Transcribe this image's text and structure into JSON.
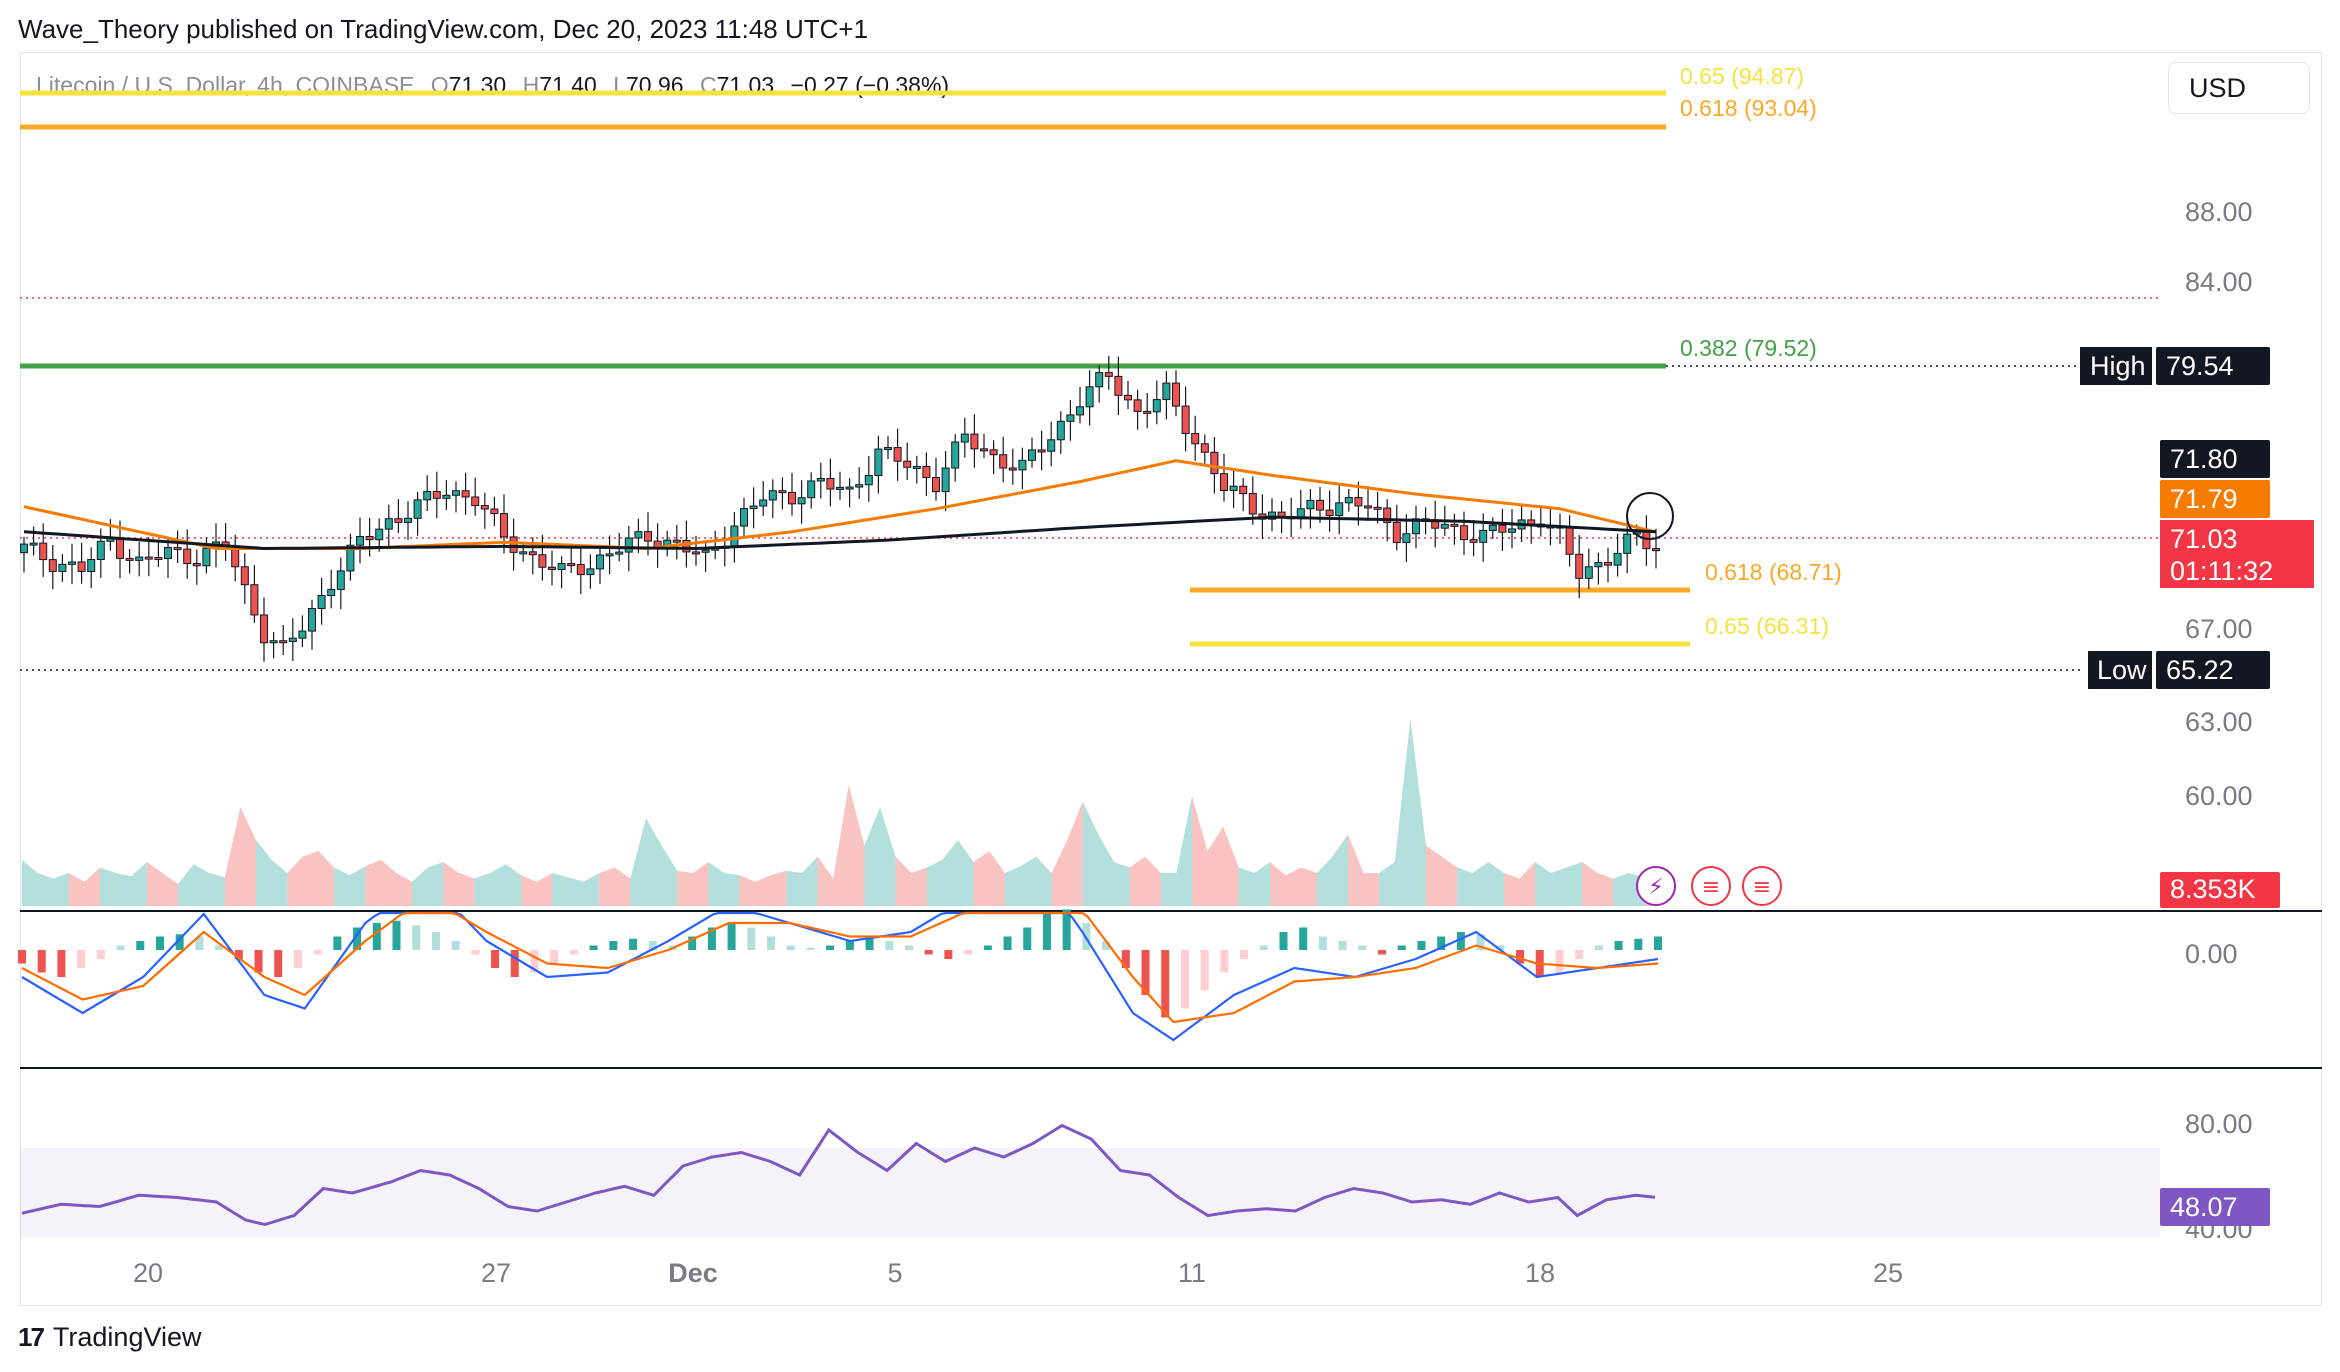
{
  "header": {
    "text": "Wave_Theory published on TradingView.com, Dec 20, 2023 11:48 UTC+1"
  },
  "symbol_bar": {
    "title": "Litecoin / U.S. Dollar, 4h, COINBASE",
    "o_label": "O",
    "o_value": "71.30",
    "h_label": "H",
    "h_value": "71.40",
    "l_label": "L",
    "l_value": "70.96",
    "c_label": "C",
    "c_value": "71.03",
    "change": "−0.27 (−0.38%)"
  },
  "currency_button": "USD",
  "footer": {
    "logo_glyph": "17",
    "brand": "TradingView"
  },
  "colors": {
    "up": "#26a69a",
    "down": "#ef5350",
    "ema50": "#f57c00",
    "ema200": "#131722",
    "fib_yellow": "#f4e23e",
    "fib_orange": "#f9a825",
    "fib_green": "#43a047",
    "macd": "#2962ff",
    "signal": "#ff6d00",
    "rsi": "#7e57c2",
    "last_price": "#f23645"
  },
  "chart_data": [
    {
      "type": "candlestick",
      "title": "Litecoin / U.S. Dollar, 4h, COINBASE",
      "x_ticks": [
        "20",
        "27",
        "Dec",
        "5",
        "11",
        "18",
        "25"
      ],
      "y_ticks": [
        "88.00",
        "84.00",
        "67.00",
        "63.00",
        "60.00"
      ],
      "price_close_path": [
        [
          0,
          71.0
        ],
        [
          3,
          70.4
        ],
        [
          6,
          70.0
        ],
        [
          9,
          71.4
        ],
        [
          12,
          70.3
        ],
        [
          15,
          70.8
        ],
        [
          18,
          70.6
        ],
        [
          21,
          71.2
        ],
        [
          23,
          69.0
        ],
        [
          25,
          67.0
        ],
        [
          27,
          66.1
        ],
        [
          29,
          67.2
        ],
        [
          32,
          69.5
        ],
        [
          35,
          71.3
        ],
        [
          38,
          72.3
        ],
        [
          41,
          73.0
        ],
        [
          44,
          73.8
        ],
        [
          47,
          73.4
        ],
        [
          50,
          71.5
        ],
        [
          53,
          70.6
        ],
        [
          56,
          69.8
        ],
        [
          59,
          70.3
        ],
        [
          62,
          71.0
        ],
        [
          65,
          71.6
        ],
        [
          68,
          71.2
        ],
        [
          71,
          70.5
        ],
        [
          74,
          72.2
        ],
        [
          77,
          73.4
        ],
        [
          80,
          73.6
        ],
        [
          83,
          74.1
        ],
        [
          86,
          73.7
        ],
        [
          89,
          75.6
        ],
        [
          92,
          75.0
        ],
        [
          95,
          74.2
        ],
        [
          98,
          76.3
        ],
        [
          101,
          75.4
        ],
        [
          104,
          74.8
        ],
        [
          107,
          76.4
        ],
        [
          110,
          78.1
        ],
        [
          113,
          79.3
        ],
        [
          116,
          77.5
        ],
        [
          119,
          78.4
        ],
        [
          122,
          76.2
        ],
        [
          125,
          73.9
        ],
        [
          128,
          73.0
        ],
        [
          131,
          72.4
        ],
        [
          134,
          72.9
        ],
        [
          137,
          73.2
        ],
        [
          140,
          73.0
        ],
        [
          143,
          71.8
        ],
        [
          146,
          72.2
        ],
        [
          149,
          71.9
        ],
        [
          152,
          71.6
        ],
        [
          155,
          72.0
        ],
        [
          158,
          72.5
        ],
        [
          160,
          71.5
        ],
        [
          162,
          69.8
        ],
        [
          164,
          70.3
        ],
        [
          166,
          70.9
        ],
        [
          168,
          71.5
        ],
        [
          170,
          71.03
        ]
      ],
      "ema50_path": [
        [
          0,
          73.0
        ],
        [
          20,
          71.0
        ],
        [
          35,
          71.0
        ],
        [
          50,
          71.3
        ],
        [
          65,
          71.0
        ],
        [
          80,
          71.8
        ],
        [
          95,
          72.9
        ],
        [
          110,
          74.2
        ],
        [
          120,
          75.2
        ],
        [
          130,
          74.5
        ],
        [
          145,
          73.6
        ],
        [
          160,
          72.9
        ],
        [
          170,
          71.79
        ]
      ],
      "ema200_path": [
        [
          0,
          71.8
        ],
        [
          25,
          71.0
        ],
        [
          50,
          71.1
        ],
        [
          70,
          71.0
        ],
        [
          90,
          71.4
        ],
        [
          110,
          72.0
        ],
        [
          130,
          72.5
        ],
        [
          150,
          72.3
        ],
        [
          170,
          71.8
        ]
      ],
      "fib_levels": [
        {
          "label": "0.65 (94.87)",
          "value": 94.87,
          "color": "#f4e23e"
        },
        {
          "label": "0.618 (93.04)",
          "value": 93.04,
          "color": "#f9a825"
        },
        {
          "label": "0.382 (79.52)",
          "value": 79.52,
          "color": "#43a047"
        },
        {
          "label": "0.618 (68.71)",
          "value": 68.71,
          "color": "#f9a825"
        },
        {
          "label": "0.65 (66.31)",
          "value": 66.31,
          "color": "#f4e23e"
        }
      ],
      "high": {
        "label": "High",
        "value": "79.54"
      },
      "low": {
        "label": "Low",
        "value": "65.22"
      },
      "price_tags": {
        "ema200": "71.80",
        "ema50": "71.79",
        "last": "71.03",
        "countdown": "01:11:32"
      }
    },
    {
      "type": "area",
      "title": "Volume",
      "last_value": "8.353K",
      "values": [
        0.42,
        0.3,
        0.25,
        0.3,
        0.22,
        0.35,
        0.3,
        0.27,
        0.4,
        0.3,
        0.2,
        0.38,
        0.3,
        0.26,
        0.9,
        0.6,
        0.42,
        0.3,
        0.45,
        0.5,
        0.35,
        0.28,
        0.36,
        0.42,
        0.3,
        0.22,
        0.35,
        0.4,
        0.3,
        0.25,
        0.3,
        0.38,
        0.28,
        0.22,
        0.3,
        0.26,
        0.22,
        0.3,
        0.35,
        0.25,
        0.8,
        0.55,
        0.32,
        0.3,
        0.4,
        0.3,
        0.28,
        0.22,
        0.28,
        0.32,
        0.3,
        0.45,
        0.25,
        1.1,
        0.55,
        0.9,
        0.45,
        0.3,
        0.35,
        0.42,
        0.6,
        0.4,
        0.5,
        0.3,
        0.36,
        0.45,
        0.3,
        0.6,
        0.95,
        0.65,
        0.4,
        0.35,
        0.45,
        0.3,
        0.3,
        1.0,
        0.5,
        0.72,
        0.35,
        0.3,
        0.4,
        0.28,
        0.35,
        0.3,
        0.45,
        0.65,
        0.3,
        0.3,
        0.4,
        1.7,
        0.55,
        0.45,
        0.35,
        0.3,
        0.4,
        0.3,
        0.25,
        0.4,
        0.3,
        0.35,
        0.4,
        0.3,
        0.25,
        0.3,
        0.26,
        0.28
      ]
    },
    {
      "type": "line",
      "title": "MACD",
      "y_ticks": [
        "0.00"
      ],
      "histogram": [
        -0.3,
        -0.5,
        -0.6,
        -0.4,
        -0.2,
        0.1,
        0.2,
        0.3,
        0.35,
        0.3,
        0.1,
        -0.2,
        -0.5,
        -0.6,
        -0.4,
        -0.1,
        0.3,
        0.5,
        0.6,
        0.65,
        0.55,
        0.4,
        0.2,
        -0.1,
        -0.4,
        -0.6,
        -0.5,
        -0.3,
        -0.1,
        0.1,
        0.2,
        0.25,
        0.2,
        0.1,
        0.3,
        0.5,
        0.6,
        0.5,
        0.3,
        0.1,
        0.05,
        0.1,
        0.2,
        0.25,
        0.2,
        0.1,
        -0.1,
        -0.2,
        -0.1,
        0.1,
        0.3,
        0.5,
        0.8,
        0.9,
        0.6,
        0.2,
        -0.4,
        -1.0,
        -1.5,
        -1.3,
        -0.9,
        -0.5,
        -0.2,
        0.1,
        0.4,
        0.5,
        0.3,
        0.2,
        0.1,
        -0.1,
        0.1,
        0.2,
        0.3,
        0.4,
        0.35,
        0.1,
        -0.3,
        -0.6,
        -0.5,
        -0.2,
        0.1,
        0.2,
        0.25,
        0.3
      ],
      "macd_path": [
        [
          0,
          -0.6
        ],
        [
          6,
          -1.4
        ],
        [
          12,
          -0.6
        ],
        [
          18,
          0.8
        ],
        [
          24,
          -1.0
        ],
        [
          28,
          -1.3
        ],
        [
          34,
          0.6
        ],
        [
          40,
          1.6
        ],
        [
          46,
          0.2
        ],
        [
          52,
          -0.6
        ],
        [
          58,
          -0.5
        ],
        [
          64,
          0.2
        ],
        [
          70,
          1.0
        ],
        [
          76,
          0.6
        ],
        [
          82,
          0.2
        ],
        [
          88,
          0.4
        ],
        [
          94,
          1.2
        ],
        [
          100,
          2.0
        ],
        [
          105,
          0.4
        ],
        [
          110,
          -1.4
        ],
        [
          114,
          -2.0
        ],
        [
          120,
          -1.0
        ],
        [
          126,
          -0.4
        ],
        [
          132,
          -0.6
        ],
        [
          138,
          -0.2
        ],
        [
          144,
          0.4
        ],
        [
          150,
          -0.6
        ],
        [
          156,
          -0.4
        ],
        [
          162,
          -0.2
        ]
      ],
      "signal_path": [
        [
          0,
          -0.4
        ],
        [
          6,
          -1.1
        ],
        [
          12,
          -0.8
        ],
        [
          18,
          0.4
        ],
        [
          24,
          -0.6
        ],
        [
          28,
          -1.0
        ],
        [
          34,
          0.2
        ],
        [
          40,
          1.2
        ],
        [
          46,
          0.4
        ],
        [
          52,
          -0.3
        ],
        [
          58,
          -0.4
        ],
        [
          64,
          0.0
        ],
        [
          70,
          0.6
        ],
        [
          76,
          0.6
        ],
        [
          82,
          0.3
        ],
        [
          88,
          0.3
        ],
        [
          94,
          0.9
        ],
        [
          100,
          1.6
        ],
        [
          105,
          0.9
        ],
        [
          110,
          -0.6
        ],
        [
          114,
          -1.6
        ],
        [
          120,
          -1.4
        ],
        [
          126,
          -0.7
        ],
        [
          132,
          -0.6
        ],
        [
          138,
          -0.4
        ],
        [
          144,
          0.1
        ],
        [
          150,
          -0.3
        ],
        [
          156,
          -0.4
        ],
        [
          162,
          -0.3
        ]
      ]
    },
    {
      "type": "line",
      "title": "RSI",
      "y_ticks": [
        "80.00",
        "40.00"
      ],
      "last_value": "48.07",
      "rsi_path": [
        [
          0,
          41
        ],
        [
          4,
          45
        ],
        [
          8,
          44
        ],
        [
          12,
          49
        ],
        [
          16,
          48
        ],
        [
          20,
          46
        ],
        [
          23,
          38
        ],
        [
          25,
          36
        ],
        [
          28,
          40
        ],
        [
          31,
          52
        ],
        [
          34,
          50
        ],
        [
          38,
          55
        ],
        [
          41,
          60
        ],
        [
          44,
          58
        ],
        [
          47,
          52
        ],
        [
          50,
          44
        ],
        [
          53,
          42
        ],
        [
          56,
          46
        ],
        [
          59,
          50
        ],
        [
          62,
          53
        ],
        [
          65,
          49
        ],
        [
          68,
          62
        ],
        [
          71,
          66
        ],
        [
          74,
          68
        ],
        [
          77,
          64
        ],
        [
          80,
          58
        ],
        [
          83,
          78
        ],
        [
          86,
          68
        ],
        [
          89,
          60
        ],
        [
          92,
          72
        ],
        [
          95,
          64
        ],
        [
          98,
          70
        ],
        [
          101,
          66
        ],
        [
          104,
          72
        ],
        [
          107,
          80
        ],
        [
          110,
          74
        ],
        [
          113,
          60
        ],
        [
          116,
          58
        ],
        [
          119,
          48
        ],
        [
          122,
          40
        ],
        [
          125,
          42
        ],
        [
          128,
          43
        ],
        [
          131,
          42
        ],
        [
          134,
          48
        ],
        [
          137,
          52
        ],
        [
          140,
          50
        ],
        [
          143,
          46
        ],
        [
          146,
          47
        ],
        [
          149,
          45
        ],
        [
          152,
          50
        ],
        [
          155,
          46
        ],
        [
          158,
          48
        ],
        [
          160,
          40
        ],
        [
          163,
          47
        ],
        [
          166,
          49
        ],
        [
          168,
          48.07
        ]
      ]
    }
  ]
}
